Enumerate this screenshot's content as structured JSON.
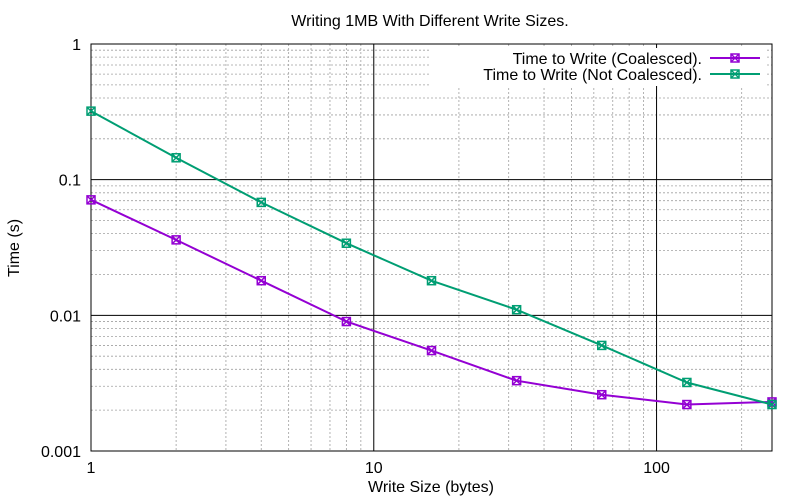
{
  "chart_data": {
    "type": "line",
    "title": "Writing 1MB With Different Write Sizes.",
    "xlabel": "Write Size (bytes)",
    "ylabel": "Time (s)",
    "xscale": "log",
    "yscale": "log",
    "xlim": [
      1,
      256
    ],
    "ylim": [
      0.001,
      1
    ],
    "x_ticks": [
      {
        "value": 1,
        "label": "1"
      },
      {
        "value": 10,
        "label": "10"
      },
      {
        "value": 100,
        "label": "100"
      }
    ],
    "y_ticks": [
      {
        "value": 1,
        "label": "1"
      },
      {
        "value": 0.1,
        "label": "0.1"
      },
      {
        "value": 0.01,
        "label": "0.01"
      },
      {
        "value": 0.001,
        "label": "0.001"
      }
    ],
    "grid": true,
    "legend_position": "top-right",
    "x": [
      1,
      2,
      4,
      8,
      16,
      32,
      64,
      128,
      256
    ],
    "series": [
      {
        "name": "Time to Write (Coalesced).",
        "color": "#9400d3",
        "marker": "x-square",
        "values": [
          0.071,
          0.036,
          0.018,
          0.009,
          0.0055,
          0.0033,
          0.0026,
          0.0022,
          0.0023
        ]
      },
      {
        "name": "Time to Write (Not Coalesced).",
        "color": "#009e73",
        "marker": "x-square",
        "values": [
          0.32,
          0.145,
          0.068,
          0.034,
          0.018,
          0.011,
          0.006,
          0.0032,
          0.0022
        ]
      }
    ]
  }
}
